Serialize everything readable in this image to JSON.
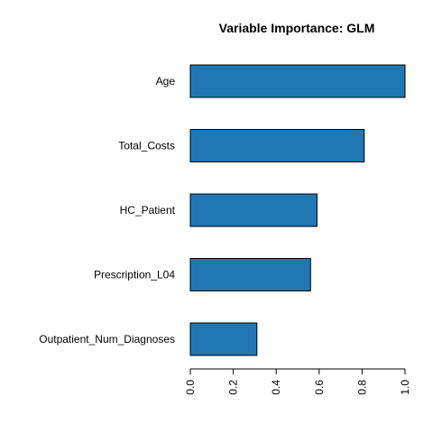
{
  "chart_data": {
    "type": "bar",
    "orientation": "horizontal",
    "title": "Variable Importance: GLM",
    "xlabel": "",
    "ylabel": "",
    "categories": [
      "Age",
      "Total_Costs",
      "HC_Patient",
      "Prescription_L04",
      "Outpatient_Num_Diagnoses"
    ],
    "values": [
      1.0,
      0.81,
      0.59,
      0.56,
      0.31
    ],
    "xlim": [
      0,
      1
    ],
    "xticks": [
      "0.0",
      "0.2",
      "0.4",
      "0.6",
      "0.8",
      "1.0"
    ],
    "tick_values": [
      0,
      0.2,
      0.4,
      0.6,
      0.8,
      1.0
    ],
    "grid": false,
    "legend": "none",
    "bar_color": "#1f78b4",
    "bar_edge_color": "#000000"
  }
}
